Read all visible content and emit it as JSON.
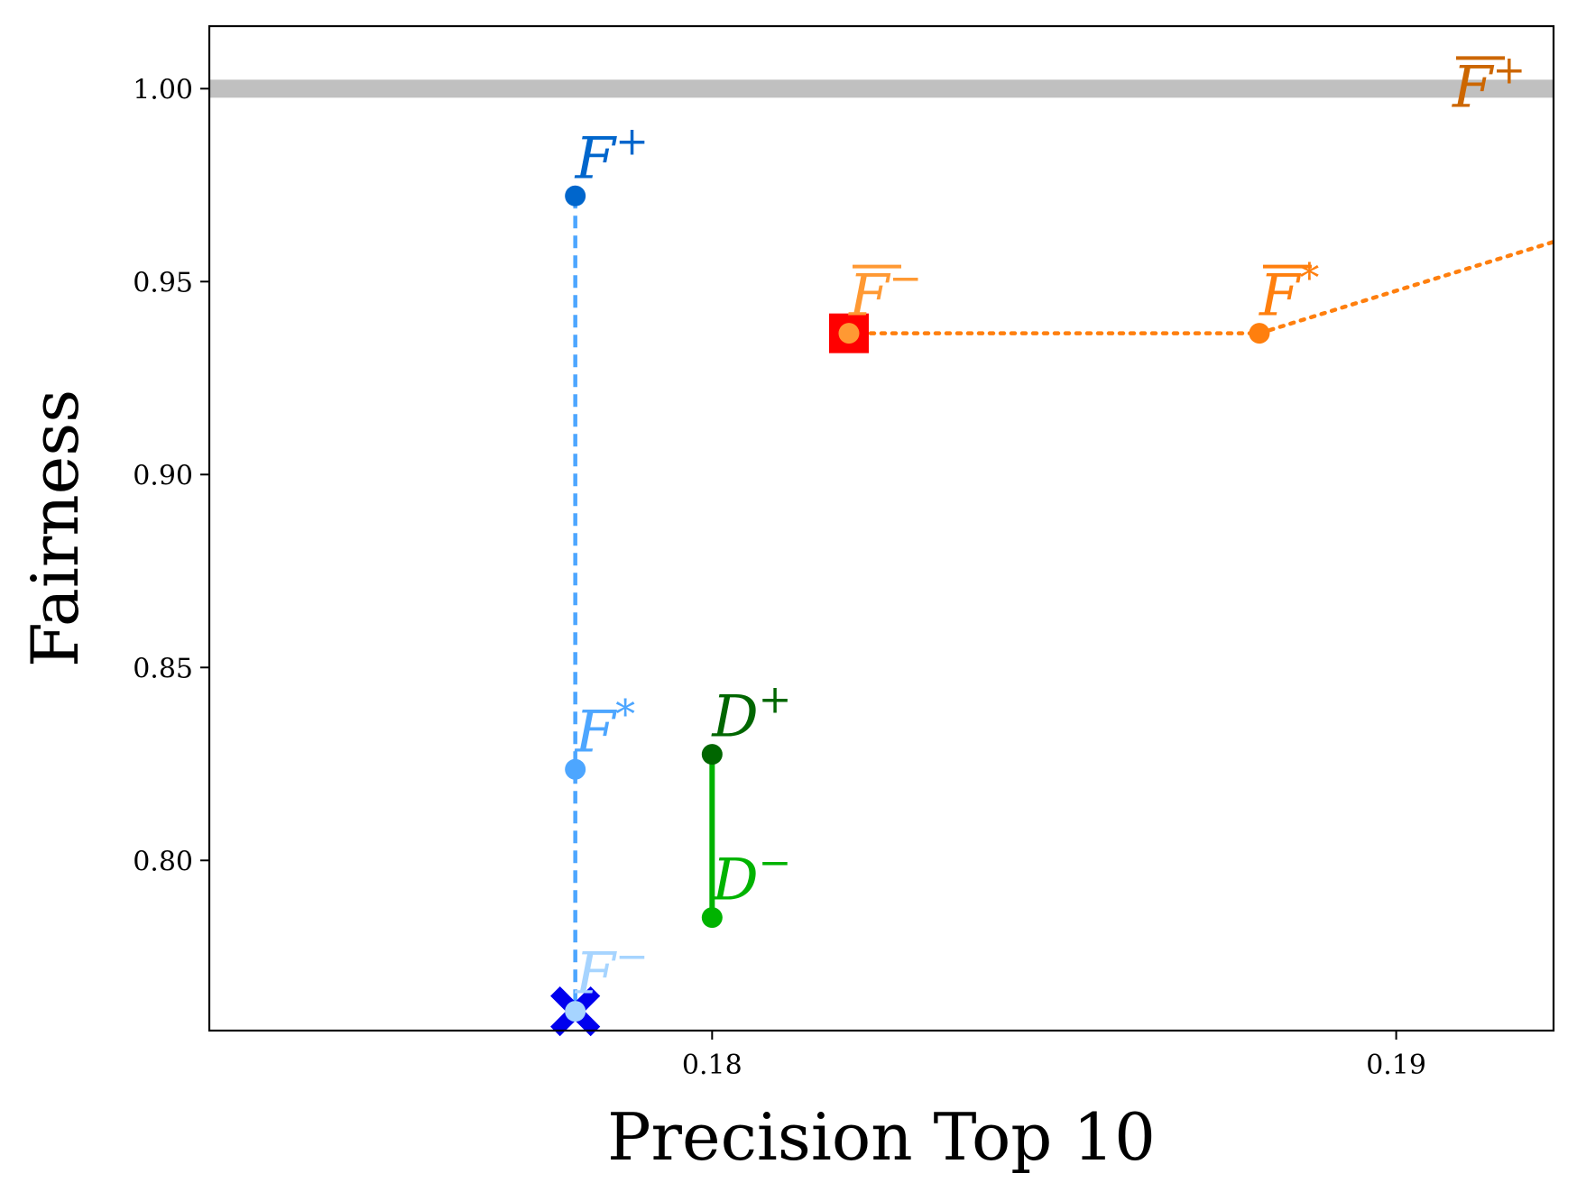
{
  "chart_data": {
    "type": "scatter",
    "title": "",
    "xlabel": "Precision Top 10",
    "ylabel": "Fairness",
    "xlim": [
      0.17265,
      0.1923
    ],
    "ylim": [
      0.7559,
      1.0162
    ],
    "x_ticks": [
      {
        "value": 0.18,
        "label": "0.18"
      },
      {
        "value": 0.19,
        "label": "0.19"
      }
    ],
    "y_ticks": [
      {
        "value": 0.8,
        "label": "0.80"
      },
      {
        "value": 0.85,
        "label": "0.85"
      },
      {
        "value": 0.9,
        "label": "0.90"
      },
      {
        "value": 0.95,
        "label": "0.95"
      },
      {
        "value": 1.0,
        "label": "1.00"
      }
    ],
    "grid": false,
    "reference_line": {
      "y": 1.0,
      "color": "#c0c0c0"
    },
    "points": [
      {
        "id": "F-plus",
        "base": "F",
        "sup": "+",
        "overline": false,
        "x": 0.178,
        "y": 0.9722,
        "color": "#0066cc"
      },
      {
        "id": "F-star",
        "base": "F",
        "sup": "*",
        "overline": false,
        "x": 0.178,
        "y": 0.8236,
        "color": "#4da6ff"
      },
      {
        "id": "F-minus",
        "base": "F",
        "sup": "−",
        "overline": false,
        "x": 0.178,
        "y": 0.7609,
        "color": "#a6d4ff"
      },
      {
        "id": "D-plus",
        "base": "D",
        "sup": "+",
        "overline": false,
        "x": 0.18,
        "y": 0.8275,
        "color": "#006600"
      },
      {
        "id": "D-minus",
        "base": "D",
        "sup": "−",
        "overline": false,
        "x": 0.18,
        "y": 0.7852,
        "color": "#00b300"
      },
      {
        "id": "Fbar-minus",
        "base": "F",
        "sup": "−",
        "overline": true,
        "x": 0.182,
        "y": 0.9366,
        "color": "#ff9933"
      },
      {
        "id": "Fbar-star",
        "base": "F",
        "sup": "*",
        "overline": true,
        "x": 0.188,
        "y": 0.9366,
        "color": "#ff7f0e"
      },
      {
        "id": "Fbar-plus",
        "base": "F",
        "sup": "+",
        "overline": true,
        "x": 0.193,
        "y": 1.0,
        "color": "#cc6600"
      }
    ],
    "segments": [
      {
        "id": "F-line",
        "from": [
          0.178,
          0.9722
        ],
        "to": [
          0.178,
          0.7609
        ],
        "color": "#4da6ff",
        "style": "dashed"
      },
      {
        "id": "D-line",
        "from": [
          0.18,
          0.8275
        ],
        "to": [
          0.18,
          0.7852
        ],
        "color": "#00b300",
        "style": "solid"
      },
      {
        "id": "Fbar-line-1",
        "from": [
          0.182,
          0.9366
        ],
        "to": [
          0.188,
          0.9366
        ],
        "color": "#ff7f0e",
        "style": "dotted"
      },
      {
        "id": "Fbar-line-2",
        "from": [
          0.188,
          0.9366
        ],
        "to": [
          0.1923,
          0.9603
        ],
        "color": "#ff7f0e",
        "style": "dotted"
      }
    ],
    "highlights": [
      {
        "id": "red-square",
        "shape": "square",
        "x": 0.182,
        "y": 0.9366,
        "color": "#ff0000"
      },
      {
        "id": "blue-x",
        "shape": "x",
        "x": 0.178,
        "y": 0.7609,
        "color": "#0000ee"
      }
    ]
  }
}
